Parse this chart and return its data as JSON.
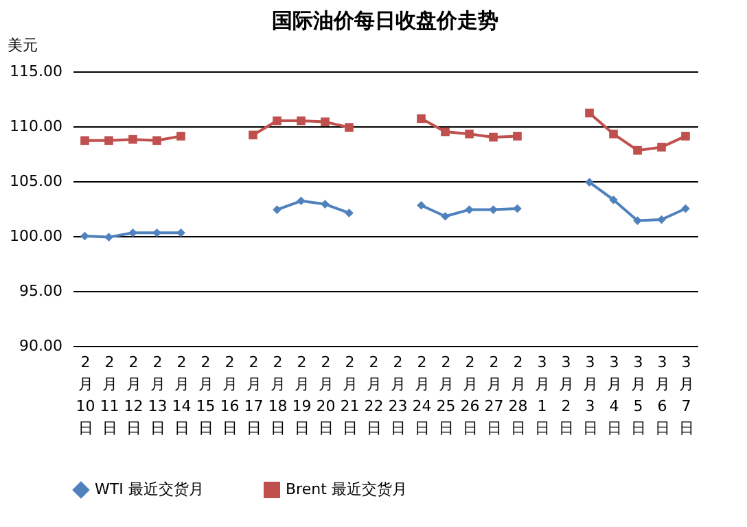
{
  "chart_data": {
    "type": "line",
    "title": "国际油价每日收盘价走势",
    "ylabel": "美元",
    "categories": [
      "2月10日",
      "2月11日",
      "2月12日",
      "2月13日",
      "2月14日",
      "2月15日",
      "2月16日",
      "2月17日",
      "2月18日",
      "2月19日",
      "2月20日",
      "2月21日",
      "2月22日",
      "2月23日",
      "2月24日",
      "2月25日",
      "2月26日",
      "2月27日",
      "2月28日",
      "3月1日",
      "3月2日",
      "3月3日",
      "3月4日",
      "3月5日",
      "3月6日",
      "3月7日"
    ],
    "series": [
      {
        "name": "WTI 最近交货月",
        "color": "#4f81bd",
        "marker": "diamond",
        "values": [
          100.0,
          99.9,
          100.3,
          100.3,
          100.3,
          null,
          null,
          null,
          102.4,
          103.2,
          102.9,
          102.1,
          null,
          null,
          102.8,
          101.8,
          102.4,
          102.4,
          102.5,
          null,
          null,
          104.9,
          103.3,
          101.4,
          101.5,
          102.5
        ]
      },
      {
        "name": "Brent 最近交货月",
        "color": "#c0504d",
        "marker": "square",
        "values": [
          108.7,
          108.7,
          108.8,
          108.7,
          109.1,
          null,
          null,
          109.2,
          110.5,
          110.5,
          110.4,
          109.9,
          null,
          null,
          110.7,
          109.5,
          109.3,
          109.0,
          109.1,
          null,
          null,
          111.2,
          109.3,
          107.8,
          108.1,
          109.1
        ]
      }
    ],
    "ylim": [
      90,
      115
    ],
    "yticks": [
      {
        "value": 90,
        "label": "90.00"
      },
      {
        "value": 95,
        "label": "95.00"
      },
      {
        "value": 100,
        "label": "100.00"
      },
      {
        "value": 105,
        "label": "105.00"
      },
      {
        "value": 110,
        "label": "110.00"
      },
      {
        "value": 115,
        "label": "115.00"
      }
    ],
    "grid": "y",
    "legend": "bottom"
  }
}
